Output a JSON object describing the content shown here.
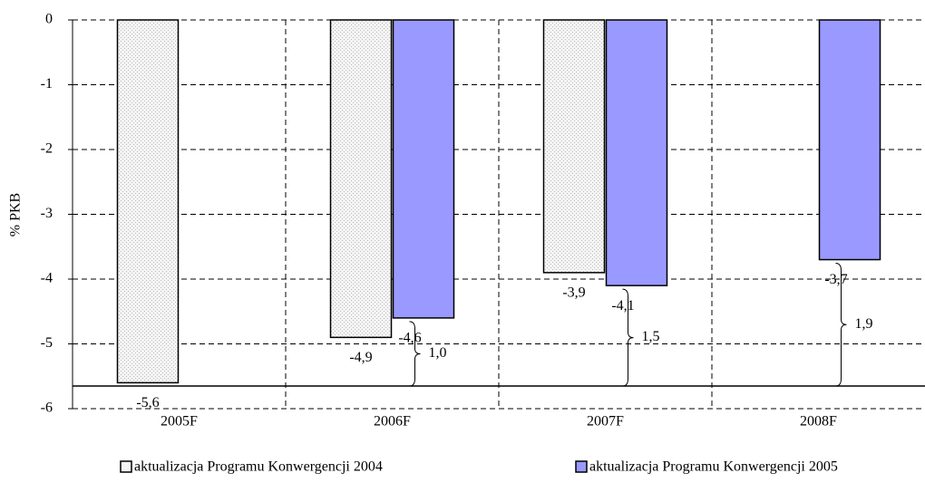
{
  "chart_data": {
    "type": "bar",
    "y_label": "% PKB",
    "categories": [
      "2005F",
      "2006F",
      "2007F",
      "2008F"
    ],
    "series": [
      {
        "name": "aktualizacja Programu Konwergencji 2004",
        "color": "#f4f4f4",
        "pattern": "dots",
        "values": [
          -5.6,
          -4.9,
          -3.9,
          null
        ],
        "value_labels": [
          "-5,6",
          "-4,9",
          "-3,9",
          null
        ]
      },
      {
        "name": "aktualizacja Programu Konwergencji 2005",
        "color": "#9999ff",
        "values": [
          null,
          -4.6,
          -4.1,
          -3.7
        ],
        "value_labels": [
          null,
          "-4,6",
          "-4,1",
          "-3,7"
        ]
      }
    ],
    "reference_line": -5.65,
    "annotations": {
      "values": [
        null,
        1.0,
        1.5,
        1.9
      ],
      "value_labels": [
        null,
        "1,0",
        "1,5",
        "1,9"
      ]
    },
    "ylim": [
      -6,
      0
    ],
    "yticks": [
      0,
      -1,
      -2,
      -3,
      -4,
      -5,
      -6
    ],
    "grid": true
  }
}
